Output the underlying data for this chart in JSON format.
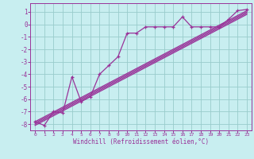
{
  "xlabel": "Windchill (Refroidissement éolien,°C)",
  "bg_color": "#c8eef0",
  "line_color": "#993399",
  "grid_color": "#99cccc",
  "xlim": [
    -0.5,
    23.5
  ],
  "ylim": [
    -8.5,
    1.7
  ],
  "xticks": [
    0,
    1,
    2,
    3,
    4,
    5,
    6,
    7,
    8,
    9,
    10,
    11,
    12,
    13,
    14,
    15,
    16,
    17,
    18,
    19,
    20,
    21,
    22,
    23
  ],
  "yticks": [
    1,
    0,
    -1,
    -2,
    -3,
    -4,
    -5,
    -6,
    -7,
    -8
  ],
  "zigzag_x": [
    0,
    1,
    2,
    3,
    4,
    5,
    6,
    7,
    8,
    9,
    10,
    11,
    12,
    13,
    14,
    15,
    16,
    17,
    18,
    19,
    20,
    21,
    22,
    23
  ],
  "zigzag_y": [
    -7.8,
    -8.1,
    -7.0,
    -7.1,
    -4.2,
    -6.2,
    -5.8,
    -4.0,
    -3.3,
    -2.6,
    -0.7,
    -0.7,
    -0.2,
    -0.2,
    -0.2,
    -0.2,
    0.6,
    -0.2,
    -0.2,
    -0.2,
    -0.2,
    0.4,
    1.1,
    1.2
  ],
  "straight_lines": [
    [
      -7.8,
      1.1
    ],
    [
      -7.9,
      1.0
    ],
    [
      -8.0,
      0.9
    ],
    [
      -8.1,
      0.8
    ]
  ]
}
